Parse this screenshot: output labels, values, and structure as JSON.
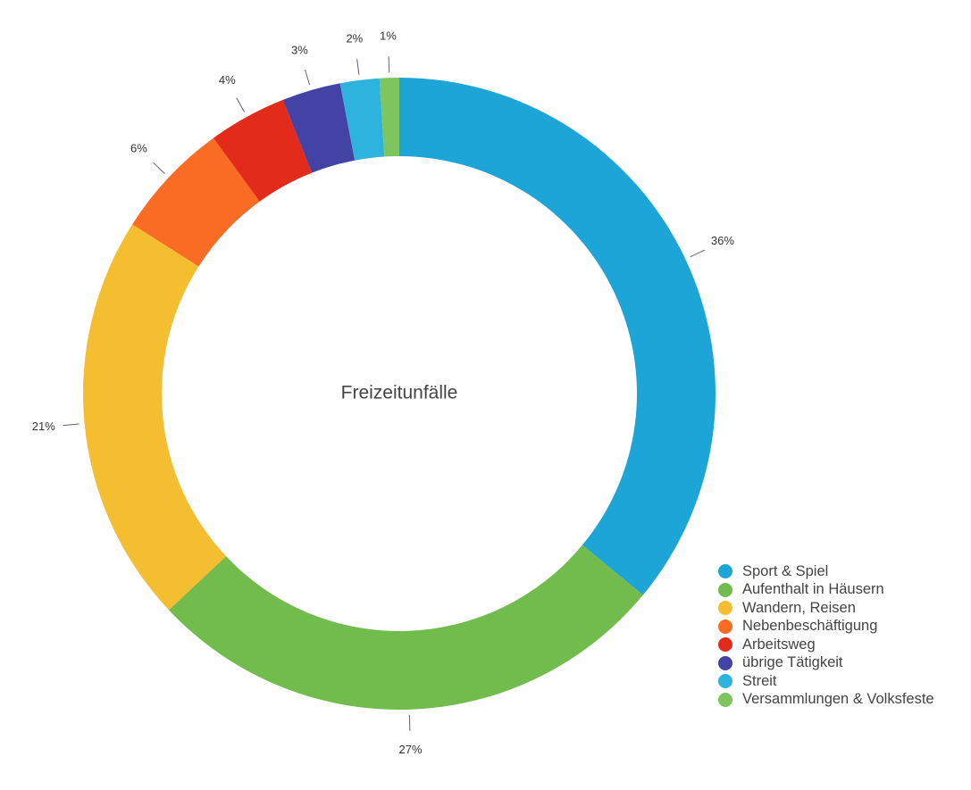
{
  "chart_data": {
    "type": "pie",
    "donut": true,
    "title": "Freizeitunfälle",
    "categories": [
      "Sport & Spiel",
      "Aufenthalt in Häusern",
      "Wandern, Reisen",
      "Nebenbeschäftigung",
      "Arbeitsweg",
      "übrige Tätigkeit",
      "Streit",
      "Versammlungen & Volksfeste"
    ],
    "values": [
      36,
      27,
      21,
      6,
      4,
      3,
      2,
      1
    ],
    "value_labels": [
      "36%",
      "27%",
      "21%",
      "6%",
      "4%",
      "3%",
      "2%",
      "1%"
    ],
    "colors": [
      "#1ca5d6",
      "#72bb4d",
      "#f4be30",
      "#fa6b24",
      "#e32b1b",
      "#4343a6",
      "#2eb2de",
      "#7ec45f"
    ],
    "legend": "bottom-right",
    "start_angle": "top",
    "direction": "clockwise"
  }
}
